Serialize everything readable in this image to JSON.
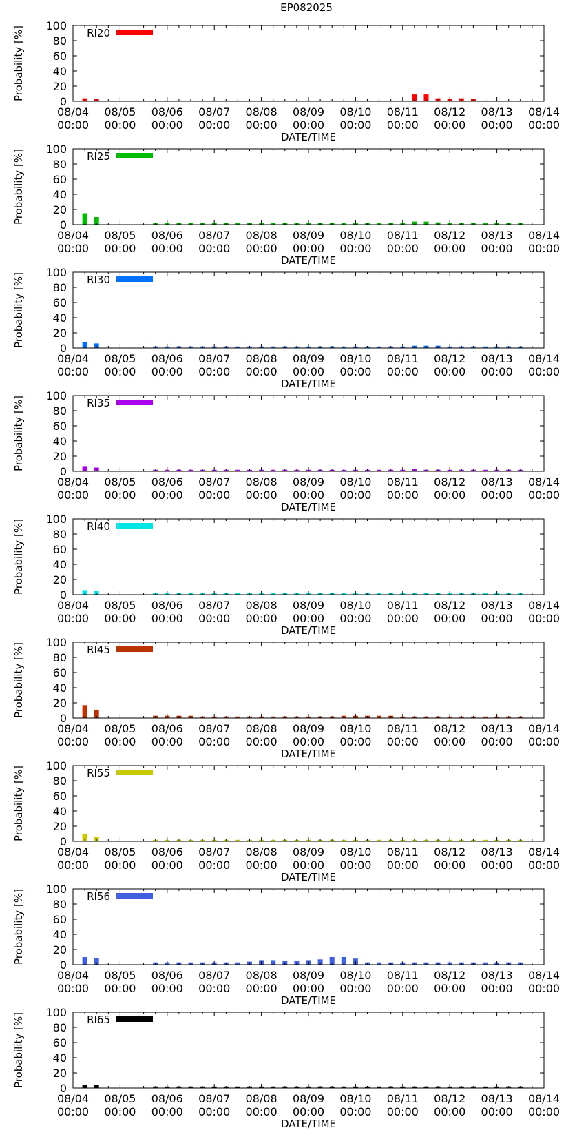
{
  "title": "EP082025",
  "chart_data": [
    {
      "type": "bar",
      "series_name": "RI20",
      "color": "#ff0000",
      "xlabel": "DATE/TIME",
      "ylabel": "Probability [%]",
      "ylim": [
        0,
        100
      ],
      "yticks": [
        0,
        20,
        40,
        60,
        80,
        100
      ],
      "xtick_labels": [
        [
          "08/04",
          "00:00"
        ],
        [
          "08/05",
          "00:00"
        ],
        [
          "08/06",
          "00:00"
        ],
        [
          "08/07",
          "00:00"
        ],
        [
          "08/08",
          "00:00"
        ],
        [
          "08/09",
          "00:00"
        ],
        [
          "08/10",
          "00:00"
        ],
        [
          "08/11",
          "00:00"
        ],
        [
          "08/12",
          "00:00"
        ],
        [
          "08/13",
          "00:00"
        ],
        [
          "08/14",
          "00:00"
        ]
      ],
      "legend_position": "top-left",
      "x_hours": [
        6,
        12,
        42,
        48,
        54,
        60,
        66,
        72,
        78,
        84,
        90,
        96,
        102,
        108,
        114,
        120,
        126,
        132,
        138,
        144,
        150,
        156,
        162,
        168,
        174,
        180,
        186,
        192,
        198,
        204,
        210,
        216,
        222,
        228
      ],
      "values": [
        4,
        3,
        1,
        1,
        1,
        1,
        1,
        1,
        1,
        1,
        1,
        1,
        1,
        1,
        1,
        1,
        1,
        1,
        1,
        1,
        1,
        1,
        1,
        1,
        9,
        9,
        4,
        3,
        4,
        3,
        1,
        1,
        1,
        1
      ]
    },
    {
      "type": "bar",
      "series_name": "RI25",
      "color": "#00bb00",
      "xlabel": "DATE/TIME",
      "ylabel": "Probability [%]",
      "ylim": [
        0,
        100
      ],
      "yticks": [
        0,
        20,
        40,
        60,
        80,
        100
      ],
      "xtick_labels": [
        [
          "08/04",
          "00:00"
        ],
        [
          "08/05",
          "00:00"
        ],
        [
          "08/06",
          "00:00"
        ],
        [
          "08/07",
          "00:00"
        ],
        [
          "08/08",
          "00:00"
        ],
        [
          "08/09",
          "00:00"
        ],
        [
          "08/10",
          "00:00"
        ],
        [
          "08/11",
          "00:00"
        ],
        [
          "08/12",
          "00:00"
        ],
        [
          "08/13",
          "00:00"
        ],
        [
          "08/14",
          "00:00"
        ]
      ],
      "legend_position": "top-left",
      "x_hours": [
        6,
        12,
        42,
        48,
        54,
        60,
        66,
        72,
        78,
        84,
        90,
        96,
        102,
        108,
        114,
        120,
        126,
        132,
        138,
        144,
        150,
        156,
        162,
        168,
        174,
        180,
        186,
        192,
        198,
        204,
        210,
        216,
        222,
        228
      ],
      "values": [
        15,
        10,
        2,
        2,
        2,
        2,
        2,
        2,
        2,
        2,
        2,
        2,
        2,
        2,
        2,
        2,
        2,
        2,
        2,
        2,
        2,
        2,
        2,
        2,
        4,
        4,
        3,
        2,
        2,
        2,
        2,
        2,
        2,
        2
      ]
    },
    {
      "type": "bar",
      "series_name": "RI30",
      "color": "#0070ff",
      "xlabel": "DATE/TIME",
      "ylabel": "Probability [%]",
      "ylim": [
        0,
        100
      ],
      "yticks": [
        0,
        20,
        40,
        60,
        80,
        100
      ],
      "xtick_labels": [
        [
          "08/04",
          "00:00"
        ],
        [
          "08/05",
          "00:00"
        ],
        [
          "08/06",
          "00:00"
        ],
        [
          "08/07",
          "00:00"
        ],
        [
          "08/08",
          "00:00"
        ],
        [
          "08/09",
          "00:00"
        ],
        [
          "08/10",
          "00:00"
        ],
        [
          "08/11",
          "00:00"
        ],
        [
          "08/12",
          "00:00"
        ],
        [
          "08/13",
          "00:00"
        ],
        [
          "08/14",
          "00:00"
        ]
      ],
      "legend_position": "top-left",
      "x_hours": [
        6,
        12,
        42,
        48,
        54,
        60,
        66,
        72,
        78,
        84,
        90,
        96,
        102,
        108,
        114,
        120,
        126,
        132,
        138,
        144,
        150,
        156,
        162,
        168,
        174,
        180,
        186,
        192,
        198,
        204,
        210,
        216,
        222,
        228
      ],
      "values": [
        8,
        6,
        2,
        2,
        2,
        2,
        2,
        2,
        2,
        2,
        2,
        2,
        2,
        2,
        2,
        2,
        2,
        2,
        2,
        2,
        2,
        2,
        2,
        2,
        3,
        3,
        3,
        2,
        2,
        2,
        2,
        2,
        2,
        2
      ]
    },
    {
      "type": "bar",
      "series_name": "RI35",
      "color": "#aa00ee",
      "xlabel": "DATE/TIME",
      "ylabel": "Probability [%]",
      "ylim": [
        0,
        100
      ],
      "yticks": [
        0,
        20,
        40,
        60,
        80,
        100
      ],
      "xtick_labels": [
        [
          "08/04",
          "00:00"
        ],
        [
          "08/05",
          "00:00"
        ],
        [
          "08/06",
          "00:00"
        ],
        [
          "08/07",
          "00:00"
        ],
        [
          "08/08",
          "00:00"
        ],
        [
          "08/09",
          "00:00"
        ],
        [
          "08/10",
          "00:00"
        ],
        [
          "08/11",
          "00:00"
        ],
        [
          "08/12",
          "00:00"
        ],
        [
          "08/13",
          "00:00"
        ],
        [
          "08/14",
          "00:00"
        ]
      ],
      "legend_position": "top-left",
      "x_hours": [
        6,
        12,
        42,
        48,
        54,
        60,
        66,
        72,
        78,
        84,
        90,
        96,
        102,
        108,
        114,
        120,
        126,
        132,
        138,
        144,
        150,
        156,
        162,
        168,
        174,
        180,
        186,
        192,
        198,
        204,
        210,
        216,
        222,
        228
      ],
      "values": [
        6,
        5,
        2,
        2,
        2,
        2,
        2,
        2,
        2,
        2,
        2,
        2,
        2,
        2,
        2,
        2,
        2,
        2,
        2,
        2,
        2,
        2,
        2,
        2,
        3,
        2,
        2,
        2,
        2,
        2,
        2,
        2,
        2,
        2
      ]
    },
    {
      "type": "bar",
      "series_name": "RI40",
      "color": "#00e5e5",
      "xlabel": "DATE/TIME",
      "ylabel": "Probability [%]",
      "ylim": [
        0,
        100
      ],
      "yticks": [
        0,
        20,
        40,
        60,
        80,
        100
      ],
      "xtick_labels": [
        [
          "08/04",
          "00:00"
        ],
        [
          "08/05",
          "00:00"
        ],
        [
          "08/06",
          "00:00"
        ],
        [
          "08/07",
          "00:00"
        ],
        [
          "08/08",
          "00:00"
        ],
        [
          "08/09",
          "00:00"
        ],
        [
          "08/10",
          "00:00"
        ],
        [
          "08/11",
          "00:00"
        ],
        [
          "08/12",
          "00:00"
        ],
        [
          "08/13",
          "00:00"
        ],
        [
          "08/14",
          "00:00"
        ]
      ],
      "legend_position": "top-left",
      "x_hours": [
        6,
        12,
        42,
        48,
        54,
        60,
        66,
        72,
        78,
        84,
        90,
        96,
        102,
        108,
        114,
        120,
        126,
        132,
        138,
        144,
        150,
        156,
        162,
        168,
        174,
        180,
        186,
        192,
        198,
        204,
        210,
        216,
        222,
        228
      ],
      "values": [
        6,
        5,
        2,
        2,
        2,
        2,
        2,
        2,
        2,
        2,
        2,
        2,
        2,
        2,
        2,
        2,
        2,
        2,
        2,
        2,
        2,
        2,
        2,
        2,
        2,
        2,
        2,
        2,
        2,
        2,
        2,
        2,
        2,
        2
      ]
    },
    {
      "type": "bar",
      "series_name": "RI45",
      "color": "#bb3300",
      "xlabel": "DATE/TIME",
      "ylabel": "Probability [%]",
      "ylim": [
        0,
        100
      ],
      "yticks": [
        0,
        20,
        40,
        60,
        80,
        100
      ],
      "xtick_labels": [
        [
          "08/04",
          "00:00"
        ],
        [
          "08/05",
          "00:00"
        ],
        [
          "08/06",
          "00:00"
        ],
        [
          "08/07",
          "00:00"
        ],
        [
          "08/08",
          "00:00"
        ],
        [
          "08/09",
          "00:00"
        ],
        [
          "08/10",
          "00:00"
        ],
        [
          "08/11",
          "00:00"
        ],
        [
          "08/12",
          "00:00"
        ],
        [
          "08/13",
          "00:00"
        ],
        [
          "08/14",
          "00:00"
        ]
      ],
      "legend_position": "top-left",
      "x_hours": [
        6,
        12,
        42,
        48,
        54,
        60,
        66,
        72,
        78,
        84,
        90,
        96,
        102,
        108,
        114,
        120,
        126,
        132,
        138,
        144,
        150,
        156,
        162,
        168,
        174,
        180,
        186,
        192,
        198,
        204,
        210,
        216,
        222,
        228
      ],
      "values": [
        17,
        11,
        3,
        3,
        3,
        3,
        2,
        2,
        2,
        2,
        2,
        2,
        2,
        2,
        2,
        2,
        2,
        2,
        3,
        3,
        3,
        3,
        3,
        2,
        2,
        2,
        2,
        2,
        2,
        2,
        2,
        2,
        2,
        2
      ]
    },
    {
      "type": "bar",
      "series_name": "RI55",
      "color": "#c8c800",
      "xlabel": "DATE/TIME",
      "ylabel": "Probability [%]",
      "ylim": [
        0,
        100
      ],
      "yticks": [
        0,
        20,
        40,
        60,
        80,
        100
      ],
      "xtick_labels": [
        [
          "08/04",
          "00:00"
        ],
        [
          "08/05",
          "00:00"
        ],
        [
          "08/06",
          "00:00"
        ],
        [
          "08/07",
          "00:00"
        ],
        [
          "08/08",
          "00:00"
        ],
        [
          "08/09",
          "00:00"
        ],
        [
          "08/10",
          "00:00"
        ],
        [
          "08/11",
          "00:00"
        ],
        [
          "08/12",
          "00:00"
        ],
        [
          "08/13",
          "00:00"
        ],
        [
          "08/14",
          "00:00"
        ]
      ],
      "legend_position": "top-left",
      "x_hours": [
        6,
        12,
        42,
        48,
        54,
        60,
        66,
        72,
        78,
        84,
        90,
        96,
        102,
        108,
        114,
        120,
        126,
        132,
        138,
        144,
        150,
        156,
        162,
        168,
        174,
        180,
        186,
        192,
        198,
        204,
        210,
        216,
        222,
        228
      ],
      "values": [
        10,
        6,
        2,
        2,
        2,
        2,
        2,
        2,
        2,
        2,
        2,
        2,
        2,
        2,
        2,
        2,
        2,
        2,
        2,
        2,
        2,
        2,
        2,
        2,
        2,
        2,
        2,
        2,
        2,
        2,
        2,
        2,
        2,
        2
      ]
    },
    {
      "type": "bar",
      "series_name": "RI56",
      "color": "#4060e0",
      "xlabel": "DATE/TIME",
      "ylabel": "Probability [%]",
      "ylim": [
        0,
        100
      ],
      "yticks": [
        0,
        20,
        40,
        60,
        80,
        100
      ],
      "xtick_labels": [
        [
          "08/04",
          "00:00"
        ],
        [
          "08/05",
          "00:00"
        ],
        [
          "08/06",
          "00:00"
        ],
        [
          "08/07",
          "00:00"
        ],
        [
          "08/08",
          "00:00"
        ],
        [
          "08/09",
          "00:00"
        ],
        [
          "08/10",
          "00:00"
        ],
        [
          "08/11",
          "00:00"
        ],
        [
          "08/12",
          "00:00"
        ],
        [
          "08/13",
          "00:00"
        ],
        [
          "08/14",
          "00:00"
        ]
      ],
      "legend_position": "top-left",
      "x_hours": [
        6,
        12,
        42,
        48,
        54,
        60,
        66,
        72,
        78,
        84,
        90,
        96,
        102,
        108,
        114,
        120,
        126,
        132,
        138,
        144,
        150,
        156,
        162,
        168,
        174,
        180,
        186,
        192,
        198,
        204,
        210,
        216,
        222,
        228
      ],
      "values": [
        10,
        9,
        3,
        3,
        3,
        3,
        3,
        3,
        3,
        3,
        4,
        6,
        6,
        5,
        5,
        6,
        7,
        10,
        10,
        8,
        3,
        3,
        3,
        3,
        3,
        3,
        3,
        3,
        3,
        3,
        3,
        3,
        3,
        3
      ]
    },
    {
      "type": "bar",
      "series_name": "RI65",
      "color": "#000000",
      "xlabel": "DATE/TIME",
      "ylabel": "Probability [%]",
      "ylim": [
        0,
        100
      ],
      "yticks": [
        0,
        20,
        40,
        60,
        80,
        100
      ],
      "xtick_labels": [
        [
          "08/04",
          "00:00"
        ],
        [
          "08/05",
          "00:00"
        ],
        [
          "08/06",
          "00:00"
        ],
        [
          "08/07",
          "00:00"
        ],
        [
          "08/08",
          "00:00"
        ],
        [
          "08/09",
          "00:00"
        ],
        [
          "08/10",
          "00:00"
        ],
        [
          "08/11",
          "00:00"
        ],
        [
          "08/12",
          "00:00"
        ],
        [
          "08/13",
          "00:00"
        ],
        [
          "08/14",
          "00:00"
        ]
      ],
      "legend_position": "top-left",
      "x_hours": [
        6,
        12,
        42,
        48,
        54,
        60,
        66,
        72,
        78,
        84,
        90,
        96,
        102,
        108,
        114,
        120,
        126,
        132,
        138,
        144,
        150,
        156,
        162,
        168,
        174,
        180,
        186,
        192,
        198,
        204,
        210,
        216,
        222,
        228
      ],
      "values": [
        4,
        4,
        2,
        2,
        2,
        2,
        2,
        2,
        2,
        2,
        2,
        2,
        2,
        2,
        2,
        2,
        2,
        2,
        2,
        2,
        2,
        2,
        2,
        2,
        2,
        2,
        2,
        2,
        2,
        2,
        2,
        2,
        2,
        2
      ]
    }
  ]
}
